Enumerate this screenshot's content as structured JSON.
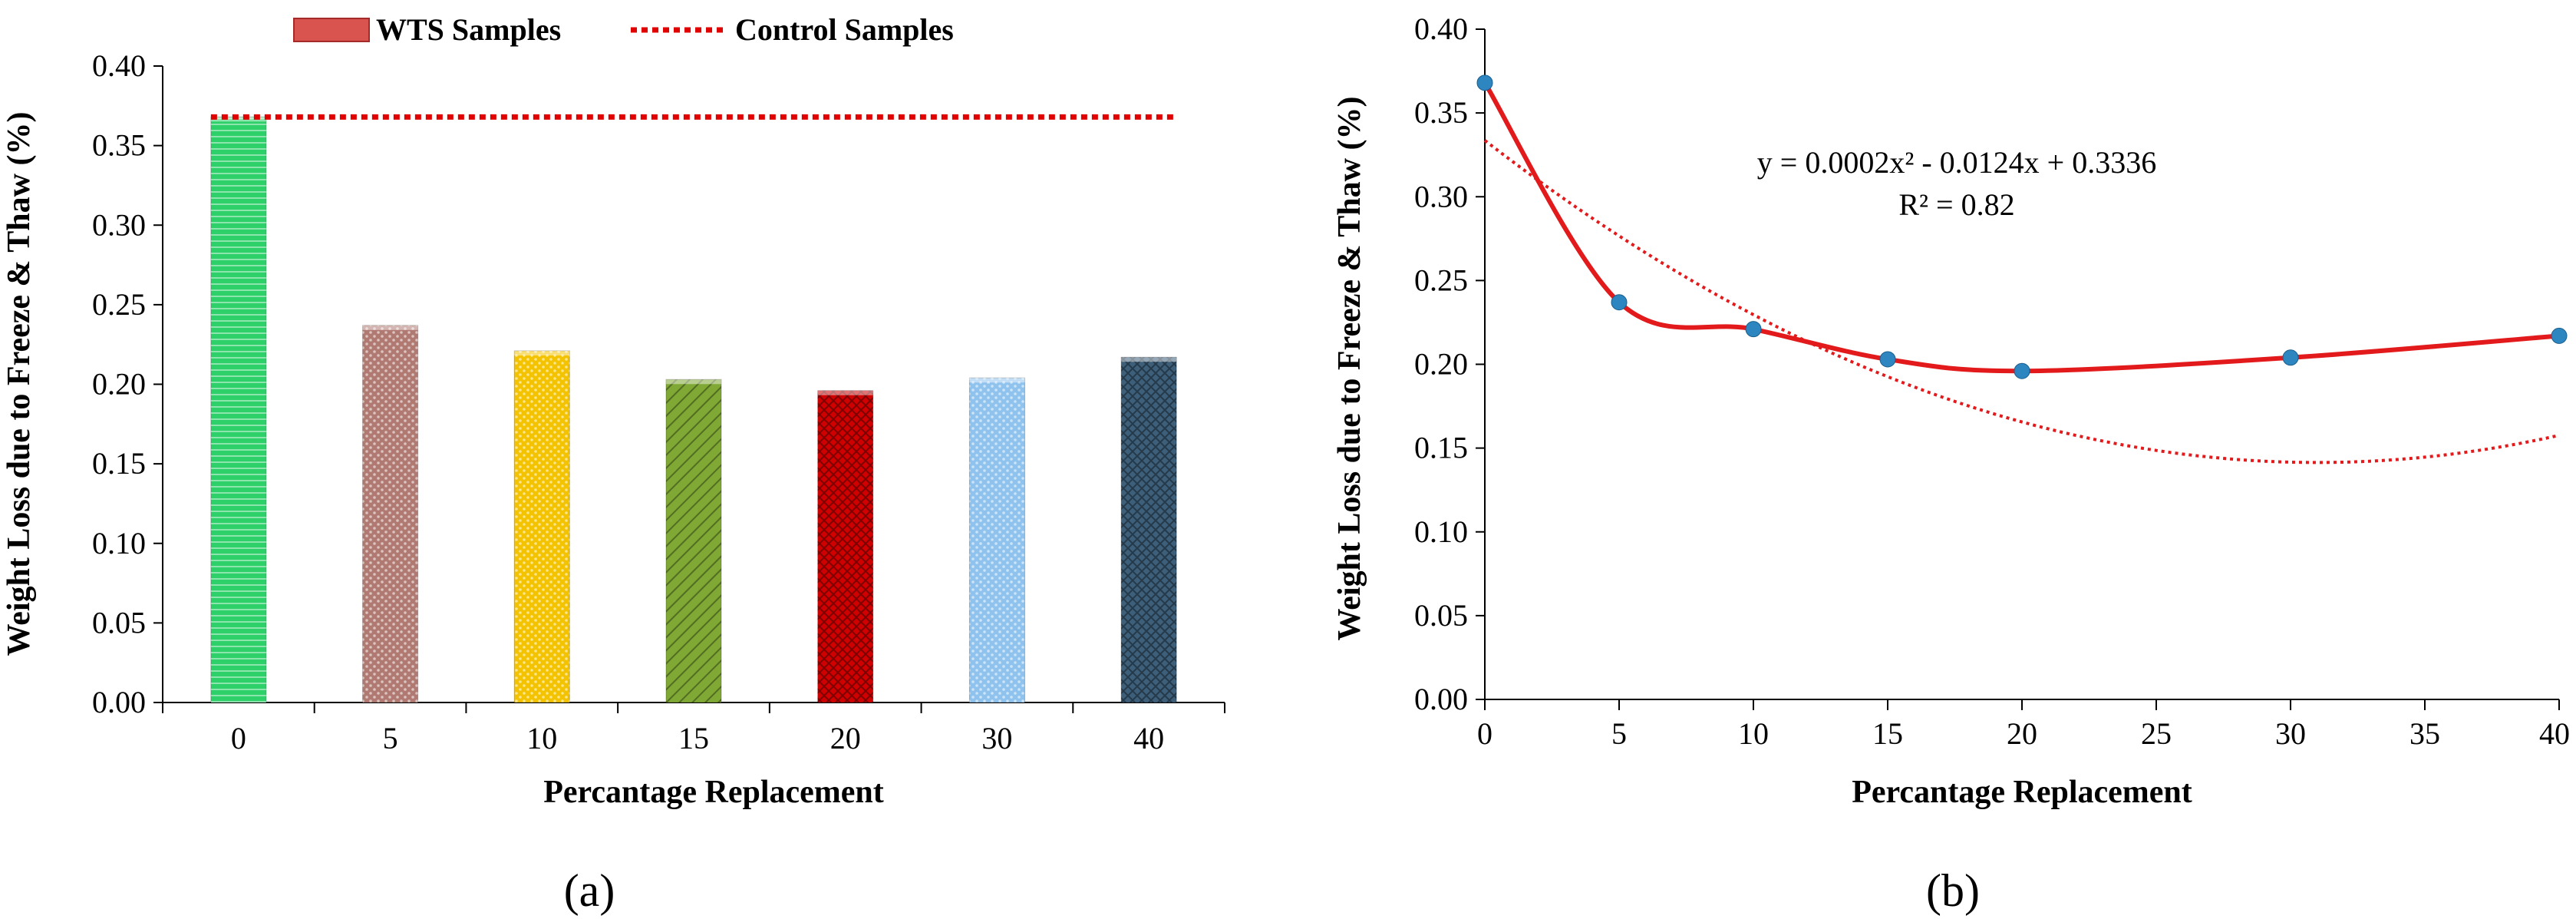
{
  "chart_data": [
    {
      "type": "bar",
      "panel_label": "(a)",
      "categories": [
        "0",
        "5",
        "10",
        "15",
        "20",
        "30",
        "40"
      ],
      "values": [
        0.368,
        0.237,
        0.221,
        0.203,
        0.196,
        0.204,
        0.217
      ],
      "bar_colors": [
        "#2ed06a",
        "#b07a72",
        "#f3c300",
        "#7fa834",
        "#d00000",
        "#8fc3ee",
        "#3d5f7a"
      ],
      "bar_patterns": [
        "h-lines",
        "dots",
        "dots",
        "diagonal",
        "crosshatch",
        "dots",
        "crosshatch"
      ],
      "control_value": 0.368,
      "legend": [
        {
          "label": "WTS Samples",
          "kind": "bar",
          "color": "#d9534f"
        },
        {
          "label": "Control Samples",
          "kind": "dotted-line",
          "color": "#e00000"
        }
      ],
      "legend_position": "top-center",
      "xlabel": "Percantage Replacement",
      "ylabel": "Weight Loss due to Freeze & Thaw (%)",
      "ylim": [
        0,
        0.4
      ],
      "yticks": [
        "0.00",
        "0.05",
        "0.10",
        "0.15",
        "0.20",
        "0.25",
        "0.30",
        "0.35",
        "0.40"
      ],
      "grid": false
    },
    {
      "type": "line",
      "panel_label": "(b)",
      "x": [
        0,
        5,
        10,
        15,
        20,
        30,
        40
      ],
      "y": [
        0.368,
        0.237,
        0.221,
        0.203,
        0.196,
        0.204,
        0.217
      ],
      "point_color": "#2e86c1",
      "line_color": "#e31a1c",
      "trendline": {
        "kind": "polynomial-2",
        "coefficients": [
          0.0002,
          -0.0124,
          0.3336
        ],
        "equation": "y = 0.0002x² - 0.0124x + 0.3336",
        "r_squared": "R² = 0.82",
        "style": "dotted"
      },
      "xlabel": "Percantage Replacement",
      "ylabel": "Weight Loss due to Freeze & Thaw (%)",
      "xlim": [
        0,
        40
      ],
      "ylim": [
        0,
        0.4
      ],
      "xticks": [
        "0",
        "5",
        "10",
        "15",
        "20",
        "25",
        "30",
        "35",
        "40"
      ],
      "yticks": [
        "0.00",
        "0.05",
        "0.10",
        "0.15",
        "0.20",
        "0.25",
        "0.30",
        "0.35",
        "0.40"
      ],
      "grid": false
    }
  ]
}
